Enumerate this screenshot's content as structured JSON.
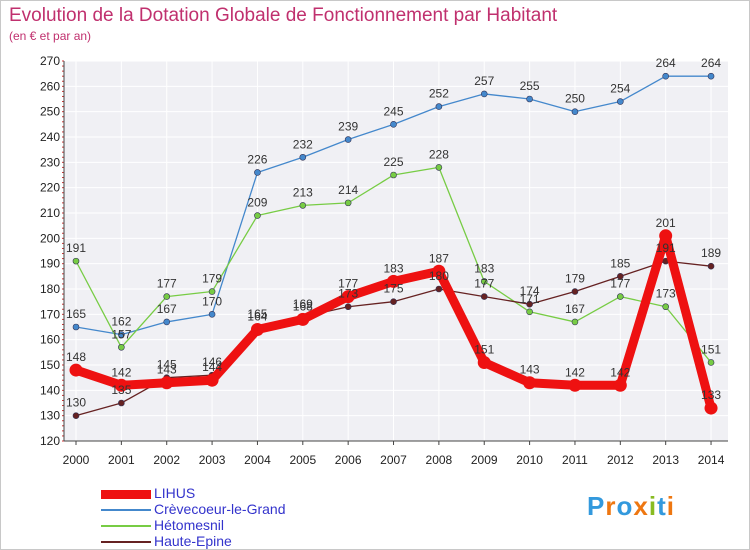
{
  "title": "Evolution de la Dotation Globale de Fonctionnement par Habitant",
  "subtitle": "(en € et par an)",
  "logo_text": "Proxiti",
  "chart_data": {
    "type": "line",
    "x": [
      "2000",
      "2001",
      "2002",
      "2003",
      "2004",
      "2005",
      "2006",
      "2007",
      "2008",
      "2009",
      "2010",
      "2011",
      "2012",
      "2013",
      "2014"
    ],
    "ylim": [
      120,
      270
    ],
    "yticks": [
      120,
      130,
      140,
      150,
      160,
      170,
      180,
      190,
      200,
      210,
      220,
      230,
      240,
      250,
      260,
      270
    ],
    "grid": true,
    "legend_position": "bottom-left",
    "series": [
      {
        "name": "LIHUS",
        "color": "#ee1111",
        "values": [
          148,
          142,
          143,
          144,
          164,
          168,
          177,
          183,
          187,
          151,
          143,
          142,
          142,
          201,
          133
        ]
      },
      {
        "name": "Crèvecoeur-le-Grand",
        "color": "#4488cc",
        "values": [
          165,
          162,
          167,
          170,
          226,
          232,
          239,
          245,
          252,
          257,
          255,
          250,
          254,
          264,
          264
        ]
      },
      {
        "name": "Hétomesnil",
        "color": "#77cc44",
        "values": [
          191,
          157,
          177,
          179,
          209,
          213,
          214,
          225,
          228,
          183,
          171,
          167,
          177,
          173,
          151
        ]
      },
      {
        "name": "Haute-Epine",
        "color": "#662222",
        "values": [
          130,
          135,
          145,
          146,
          165,
          169,
          173,
          175,
          180,
          177,
          174,
          179,
          185,
          191,
          189
        ]
      }
    ]
  }
}
